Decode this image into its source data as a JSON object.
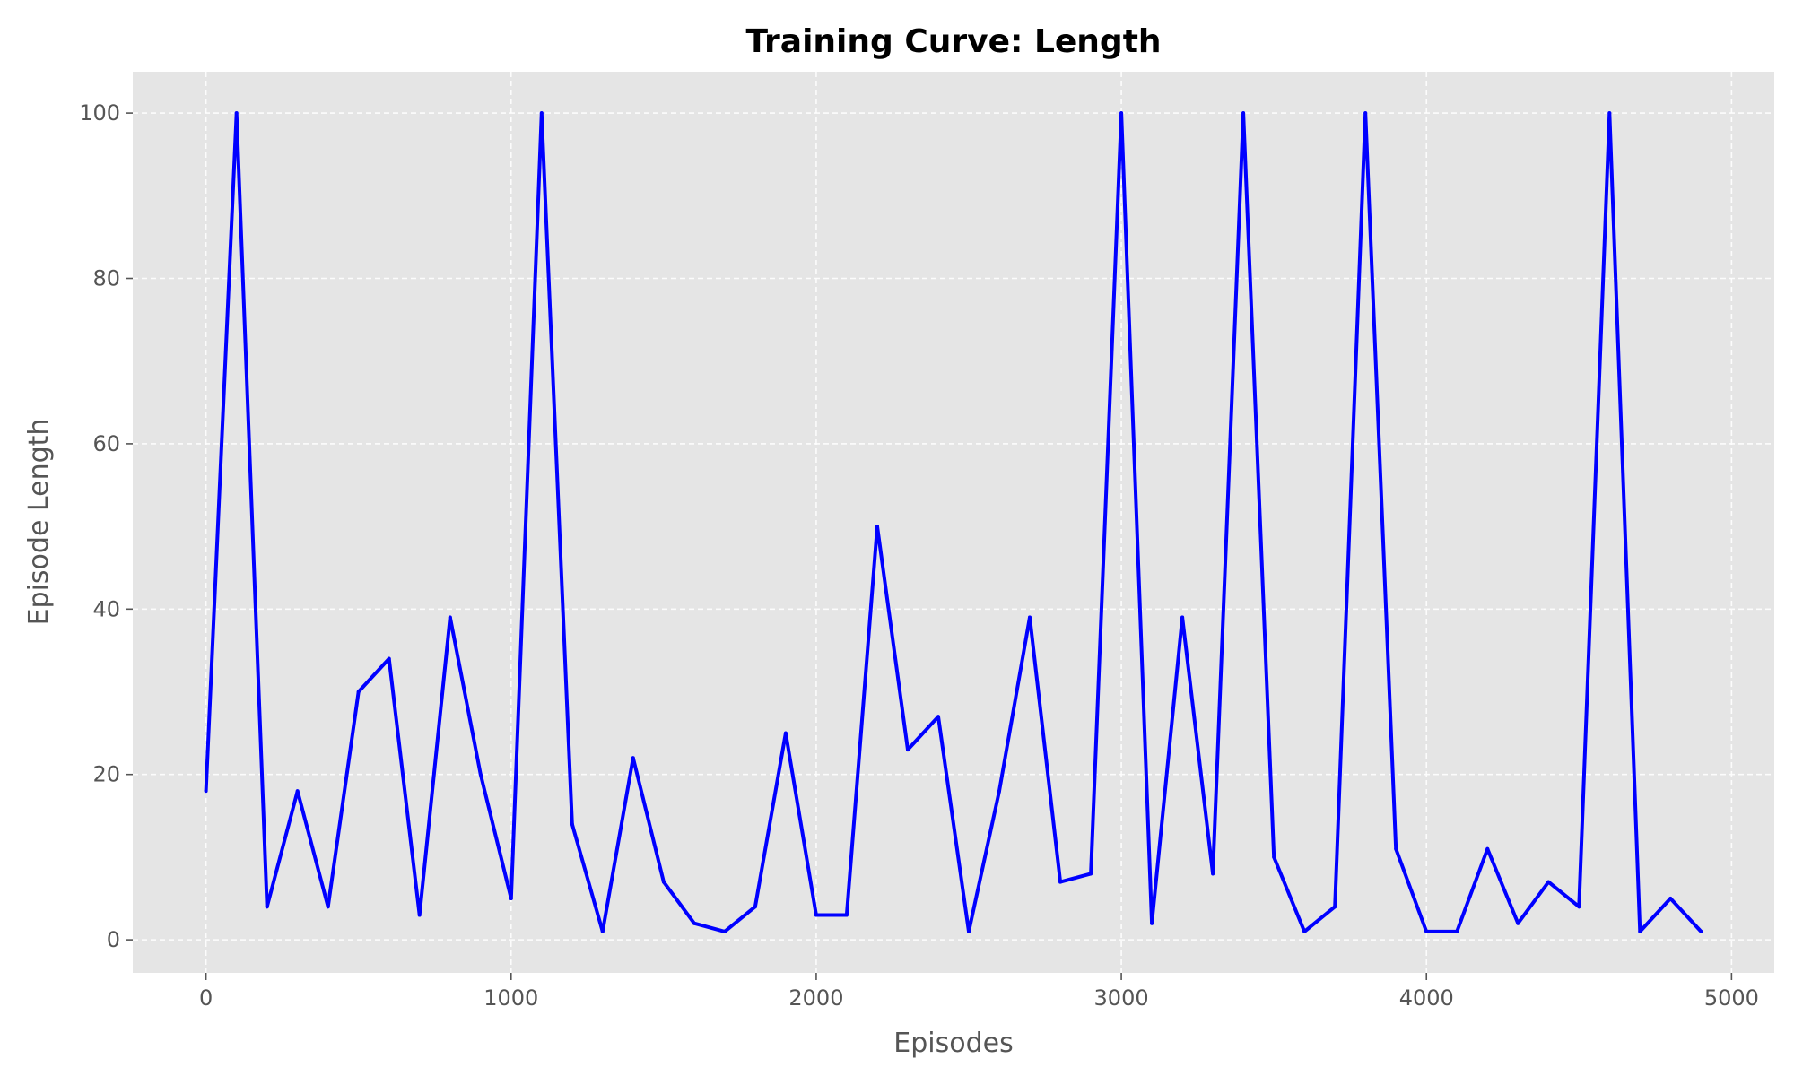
{
  "chart_data": {
    "type": "line",
    "title": "Training Curve: Length",
    "xlabel": "Episodes",
    "ylabel": "Episode Length",
    "xlim": [
      -240,
      5140
    ],
    "ylim": [
      -4,
      105
    ],
    "xticks": [
      0,
      1000,
      2000,
      3000,
      4000,
      5000
    ],
    "yticks": [
      0,
      20,
      40,
      60,
      80,
      100
    ],
    "xtick_labels": [
      "0",
      "1000",
      "2000",
      "3000",
      "4000",
      "5000"
    ],
    "ytick_labels": [
      "0",
      "20",
      "40",
      "60",
      "80",
      "100"
    ],
    "grid": true,
    "background_color": "#e5e5e5",
    "line_color": "#0000ff",
    "series": [
      {
        "x": [
          0,
          100,
          200,
          300,
          400,
          500,
          600,
          700,
          800,
          900,
          1000,
          1100,
          1200,
          1300,
          1400,
          1500,
          1600,
          1700,
          1800,
          1900,
          2000,
          2100,
          2200,
          2300,
          2400,
          2500,
          2600,
          2700,
          2800,
          2900,
          3000,
          3100,
          3200,
          3300,
          3400,
          3500,
          3600,
          3700,
          3800,
          3900,
          4000,
          4100,
          4200,
          4300,
          4400,
          4500,
          4600,
          4700,
          4800,
          4900
        ],
        "values": [
          18,
          100,
          4,
          18,
          4,
          30,
          34,
          3,
          39,
          20,
          5,
          100,
          14,
          1,
          22,
          7,
          2,
          1,
          4,
          25,
          3,
          3,
          50,
          23,
          27,
          1,
          18,
          39,
          7,
          8,
          100,
          2,
          39,
          8,
          100,
          10,
          1,
          4,
          100,
          11,
          1,
          1,
          11,
          2,
          7,
          4,
          100,
          1,
          5,
          1
        ]
      }
    ]
  }
}
